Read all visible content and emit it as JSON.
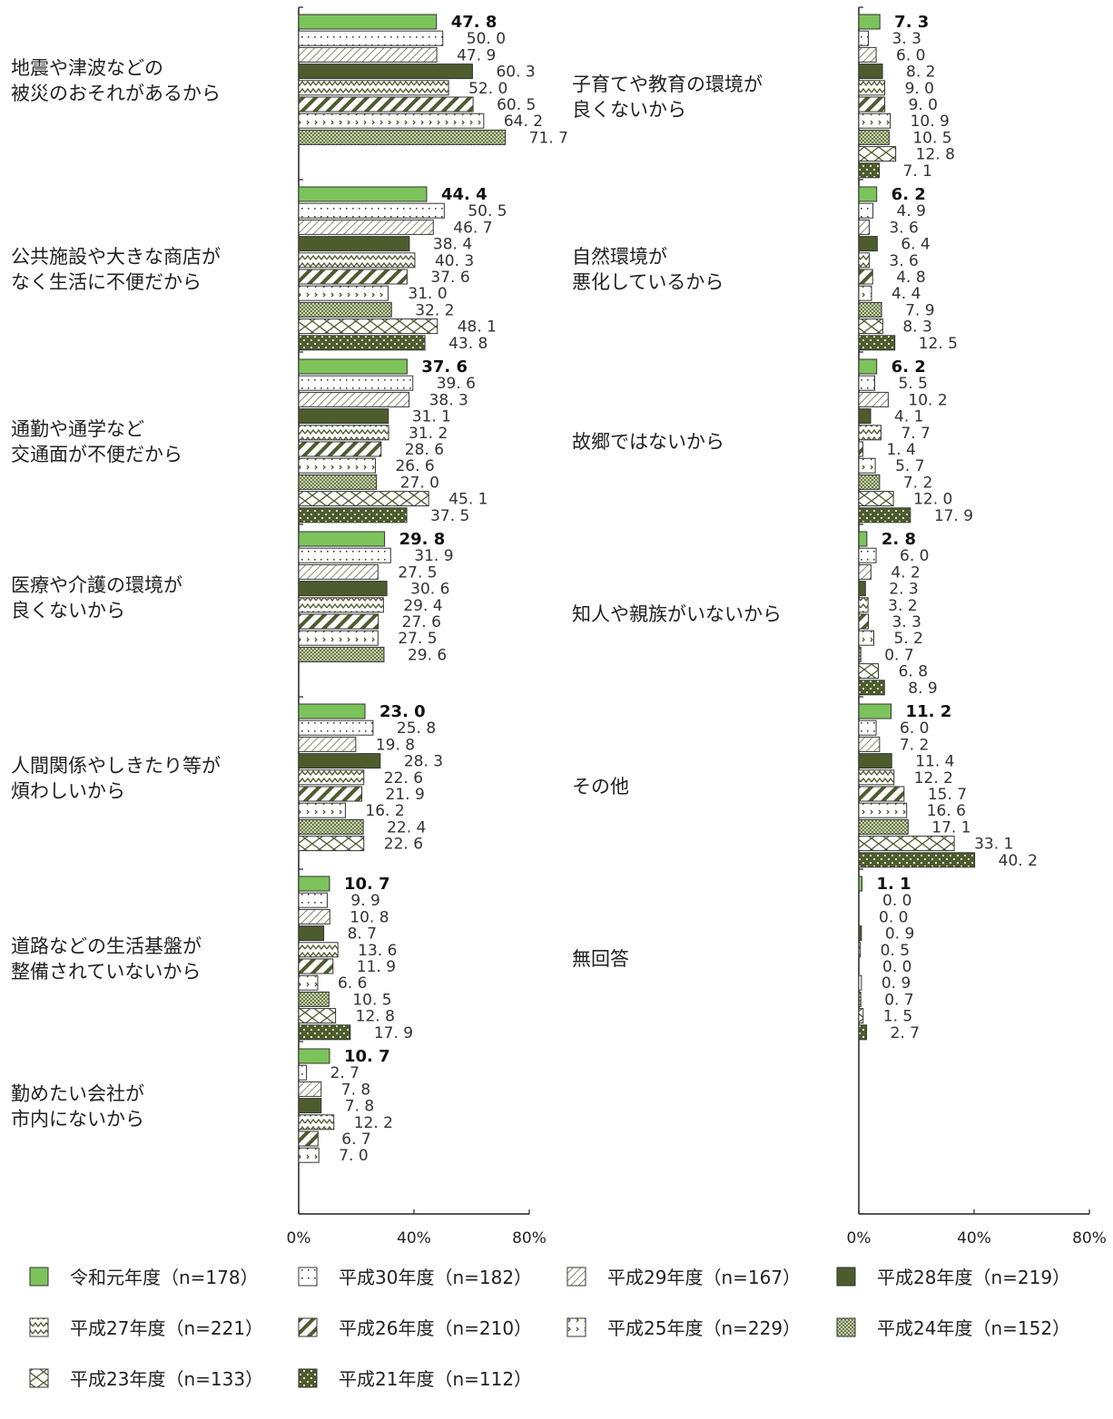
{
  "chart_data": {
    "type": "bar",
    "orientation": "horizontal",
    "x_ticks": [
      "0%",
      "40%",
      "80%"
    ],
    "xlim": [
      0,
      80
    ],
    "series": [
      {
        "name": "令和元年度（n=178）",
        "pattern": "solid-light"
      },
      {
        "name": "平成30年度（n=182）",
        "pattern": "dots"
      },
      {
        "name": "平成29年度（n=167）",
        "pattern": "diag-thin"
      },
      {
        "name": "平成28年度（n=219）",
        "pattern": "solid-dark"
      },
      {
        "name": "平成27年度（n=221）",
        "pattern": "wave"
      },
      {
        "name": "平成26年度（n=210）",
        "pattern": "diag-thick"
      },
      {
        "name": "平成25年度（n=229）",
        "pattern": "arrows"
      },
      {
        "name": "平成24年度（n=152）",
        "pattern": "checker"
      },
      {
        "name": "平成23年度（n=133）",
        "pattern": "cross"
      },
      {
        "name": "平成21年度（n=112）",
        "pattern": "dark-dots"
      }
    ],
    "panels": [
      {
        "categories": [
          {
            "label": [
              "地震や津波などの",
              "被災のおそれがあるから"
            ],
            "values": [
              47.8,
              50.0,
              47.9,
              60.3,
              52.0,
              60.5,
              64.2,
              71.7
            ],
            "series_index": [
              0,
              1,
              2,
              3,
              4,
              5,
              6,
              7
            ]
          },
          {
            "label": [
              "公共施設や大きな商店が",
              "なく生活に不便だから"
            ],
            "values": [
              44.4,
              50.5,
              46.7,
              38.4,
              40.3,
              37.6,
              31.0,
              32.2,
              48.1,
              43.8
            ],
            "series_index": [
              0,
              1,
              2,
              3,
              4,
              5,
              6,
              7,
              8,
              9
            ]
          },
          {
            "label": [
              "通勤や通学など",
              "交通面が不便だから"
            ],
            "values": [
              37.6,
              39.6,
              38.3,
              31.1,
              31.2,
              28.6,
              26.6,
              27.0,
              45.1,
              37.5
            ],
            "series_index": [
              0,
              1,
              2,
              3,
              4,
              5,
              6,
              7,
              8,
              9
            ]
          },
          {
            "label": [
              "医療や介護の環境が",
              "良くないから"
            ],
            "values": [
              29.8,
              31.9,
              27.5,
              30.6,
              29.4,
              27.6,
              27.5,
              29.6
            ],
            "series_index": [
              0,
              1,
              2,
              3,
              4,
              5,
              6,
              7
            ]
          },
          {
            "label": [
              "人間関係やしきたり等が",
              "煩わしいから"
            ],
            "values": [
              23.0,
              25.8,
              19.8,
              28.3,
              22.6,
              21.9,
              16.2,
              22.4,
              22.6
            ],
            "series_index": [
              0,
              1,
              2,
              3,
              4,
              5,
              6,
              7,
              8
            ]
          },
          {
            "label": [
              "道路などの生活基盤が",
              "整備されていないから"
            ],
            "values": [
              10.7,
              9.9,
              10.8,
              8.7,
              13.6,
              11.9,
              6.6,
              10.5,
              12.8,
              17.9
            ],
            "series_index": [
              0,
              1,
              2,
              3,
              4,
              5,
              6,
              7,
              8,
              9
            ]
          },
          {
            "label": [
              "勤めたい会社が",
              "市内にないから"
            ],
            "values": [
              10.7,
              2.7,
              7.8,
              7.8,
              12.2,
              6.7,
              7.0
            ],
            "series_index": [
              0,
              1,
              2,
              3,
              4,
              5,
              6
            ]
          }
        ]
      },
      {
        "categories": [
          {
            "label": [
              "子育てや教育の環境が",
              "良くないから"
            ],
            "values": [
              7.3,
              3.3,
              6.0,
              8.2,
              9.0,
              9.0,
              10.9,
              10.5,
              12.8,
              7.1
            ],
            "series_index": [
              0,
              1,
              2,
              3,
              4,
              5,
              6,
              7,
              8,
              9
            ]
          },
          {
            "label": [
              "自然環境が",
              "悪化しているから"
            ],
            "values": [
              6.2,
              4.9,
              3.6,
              6.4,
              3.6,
              4.8,
              4.4,
              7.9,
              8.3,
              12.5
            ],
            "series_index": [
              0,
              1,
              2,
              3,
              4,
              5,
              6,
              7,
              8,
              9
            ]
          },
          {
            "label": [
              "故郷ではないから"
            ],
            "values": [
              6.2,
              5.5,
              10.2,
              4.1,
              7.7,
              1.4,
              5.7,
              7.2,
              12.0,
              17.9
            ],
            "series_index": [
              0,
              1,
              2,
              3,
              4,
              5,
              6,
              7,
              8,
              9
            ]
          },
          {
            "label": [
              "知人や親族がいないから"
            ],
            "values": [
              2.8,
              6.0,
              4.2,
              2.3,
              3.2,
              3.3,
              5.2,
              0.7,
              6.8,
              8.9
            ],
            "series_index": [
              0,
              1,
              2,
              3,
              4,
              5,
              6,
              7,
              8,
              9
            ]
          },
          {
            "label": [
              "その他"
            ],
            "values": [
              11.2,
              6.0,
              7.2,
              11.4,
              12.2,
              15.7,
              16.6,
              17.1,
              33.1,
              40.2
            ],
            "series_index": [
              0,
              1,
              2,
              3,
              4,
              5,
              6,
              7,
              8,
              9
            ]
          },
          {
            "label": [
              "無回答"
            ],
            "values": [
              1.1,
              0.0,
              0.0,
              0.9,
              0.5,
              0.0,
              0.9,
              0.7,
              1.5,
              2.7
            ],
            "series_index": [
              0,
              1,
              2,
              3,
              4,
              5,
              6,
              7,
              8,
              9
            ]
          }
        ]
      }
    ],
    "legend_position": "bottom",
    "colors": {
      "light_green": "#7dc35b",
      "dark_olive": "#4d5c2d",
      "olive_pattern": "#5b6b34",
      "edge": "#333333"
    }
  }
}
